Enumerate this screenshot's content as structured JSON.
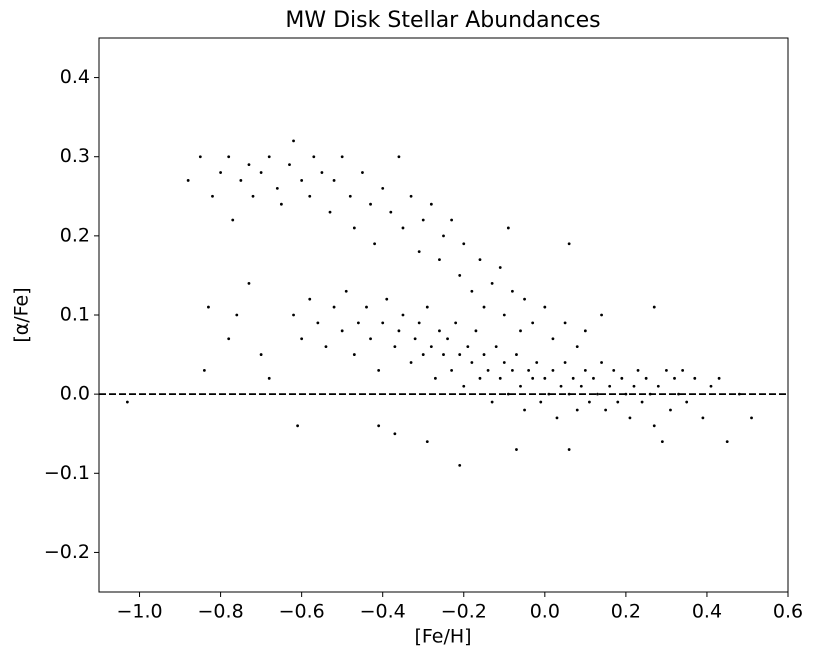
{
  "chart_data": {
    "type": "scatter",
    "title": "MW Disk Stellar Abundances",
    "x_label": "[Fe/H]",
    "y_label": "[α/Fe]",
    "color": "#000000",
    "xlim": [
      -1.1,
      0.6
    ],
    "xticks": [
      {
        "value": -1.0,
        "label": "−1.0"
      },
      {
        "value": -0.8,
        "label": "−0.8"
      },
      {
        "value": -0.6,
        "label": "−0.6"
      },
      {
        "value": -0.4,
        "label": "−0.4"
      },
      {
        "value": -0.2,
        "label": "−0.2"
      },
      {
        "value": 0,
        "label": "0.0"
      },
      0.2,
      0.4,
      0.6
    ],
    "ylim": [
      -0.25,
      0.45
    ],
    "yticks": [
      {
        "value": -0.2,
        "label": "−0.2"
      },
      {
        "value": -0.1,
        "label": "−0.1"
      },
      {
        "value": 0,
        "label": "0.0"
      },
      0.1,
      0.2,
      0.3,
      0.4
    ],
    "hline": 0,
    "x": [
      -0.88,
      -0.85,
      -0.82,
      -0.8,
      -0.78,
      -0.77,
      -0.75,
      -0.73,
      -0.72,
      -0.7,
      -0.68,
      -0.66,
      -0.65,
      -0.63,
      -0.62,
      -0.6,
      -0.58,
      -0.57,
      -0.55,
      -0.53,
      -0.52,
      -0.5,
      -0.48,
      -0.47,
      -0.45,
      -0.43,
      -0.42,
      -0.4,
      -0.38,
      -0.36,
      -0.35,
      -0.33,
      -0.31,
      -0.3,
      -0.28,
      -0.26,
      -0.25,
      -0.23,
      -0.21,
      -0.2,
      -0.18,
      -0.16,
      -0.15,
      -0.13,
      -0.11,
      -0.1,
      -0.08,
      -0.06,
      -0.05,
      -0.03,
      0.0,
      0.02,
      0.05,
      0.08,
      0.1,
      0.06,
      -0.09,
      0.14,
      0.27,
      -0.62,
      -0.6,
      -0.58,
      -0.56,
      -0.54,
      -0.52,
      -0.5,
      -0.49,
      -0.47,
      -0.46,
      -0.44,
      -0.43,
      -0.41,
      -0.4,
      -0.39,
      -0.37,
      -0.36,
      -0.35,
      -0.33,
      -0.32,
      -0.31,
      -0.3,
      -0.29,
      -0.28,
      -0.27,
      -0.26,
      -0.25,
      -0.24,
      -0.23,
      -0.22,
      -0.21,
      -0.2,
      -0.19,
      -0.18,
      -0.17,
      -0.16,
      -0.15,
      -0.14,
      -0.13,
      -0.12,
      -0.11,
      -0.1,
      -0.09,
      -0.08,
      -0.07,
      -0.06,
      -0.05,
      -0.04,
      -0.03,
      -0.02,
      -0.01,
      0.0,
      0.01,
      0.02,
      0.03,
      0.04,
      0.05,
      0.06,
      0.07,
      0.08,
      0.09,
      0.1,
      0.11,
      0.12,
      0.13,
      0.14,
      0.15,
      0.16,
      0.17,
      0.18,
      0.19,
      0.2,
      0.21,
      0.22,
      0.23,
      0.24,
      0.25,
      0.26,
      0.27,
      0.28,
      0.3,
      0.31,
      0.32,
      0.33,
      0.34,
      0.35,
      0.37,
      0.39,
      0.41,
      0.43,
      0.45,
      0.48,
      0.51,
      -1.03,
      -0.84,
      -0.83,
      -0.78,
      -0.76,
      -0.68,
      -0.61,
      -0.41,
      -0.37,
      -0.29,
      -0.21,
      -0.07,
      0.06,
      0.29,
      -0.73,
      -0.7
    ],
    "y": [
      0.27,
      0.3,
      0.25,
      0.28,
      0.3,
      0.22,
      0.27,
      0.29,
      0.25,
      0.28,
      0.3,
      0.26,
      0.24,
      0.29,
      0.32,
      0.27,
      0.25,
      0.3,
      0.28,
      0.23,
      0.27,
      0.3,
      0.25,
      0.21,
      0.28,
      0.24,
      0.19,
      0.26,
      0.23,
      0.3,
      0.21,
      0.25,
      0.18,
      0.22,
      0.24,
      0.17,
      0.2,
      0.22,
      0.15,
      0.19,
      0.13,
      0.17,
      0.11,
      0.14,
      0.16,
      0.1,
      0.13,
      0.08,
      0.12,
      0.09,
      0.11,
      0.07,
      0.09,
      0.06,
      0.08,
      0.19,
      0.21,
      0.1,
      0.11,
      0.1,
      0.07,
      0.12,
      0.09,
      0.06,
      0.11,
      0.08,
      0.13,
      0.05,
      0.09,
      0.11,
      0.07,
      0.03,
      0.09,
      0.12,
      0.06,
      0.08,
      0.1,
      0.04,
      0.07,
      0.09,
      0.05,
      0.11,
      0.06,
      0.02,
      0.08,
      0.05,
      0.07,
      0.03,
      0.09,
      0.05,
      0.01,
      0.06,
      0.04,
      0.08,
      0.02,
      0.05,
      0.03,
      -0.01,
      0.06,
      0.02,
      0.04,
      0.0,
      0.03,
      0.05,
      0.01,
      -0.02,
      0.03,
      0.02,
      0.04,
      -0.01,
      0.02,
      0.0,
      0.03,
      -0.03,
      0.01,
      0.04,
      0.0,
      0.02,
      -0.02,
      0.01,
      0.03,
      -0.01,
      0.02,
      0.0,
      0.04,
      -0.02,
      0.01,
      0.03,
      -0.01,
      0.02,
      0.0,
      -0.03,
      0.01,
      0.03,
      -0.01,
      0.02,
      0.0,
      -0.04,
      0.01,
      0.03,
      -0.02,
      0.02,
      0.0,
      0.03,
      -0.01,
      0.02,
      -0.03,
      0.01,
      0.02,
      -0.06,
      0.0,
      -0.03,
      -0.01,
      0.03,
      0.11,
      0.07,
      0.1,
      0.02,
      -0.04,
      -0.04,
      -0.05,
      -0.06,
      -0.09,
      -0.07,
      -0.07,
      -0.06,
      0.14,
      0.05
    ]
  }
}
